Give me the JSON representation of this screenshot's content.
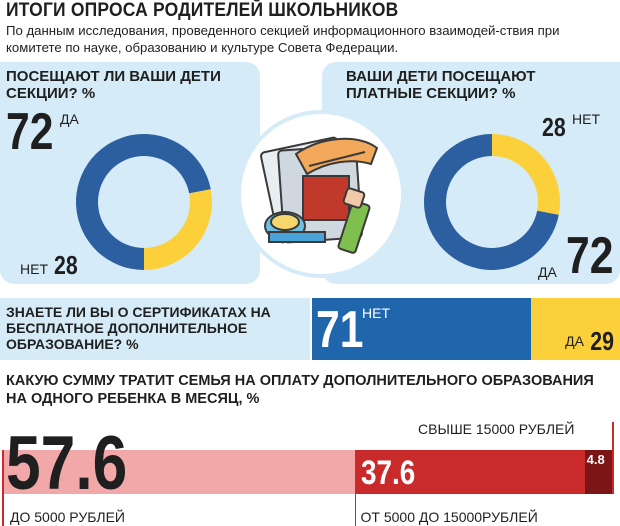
{
  "header": {
    "title": "ИТОГИ ОПРОСА РОДИТЕЛЕЙ ШКОЛЬНИКОВ",
    "subtitle": "По данным исследования, проведенного секцией информационного взаимодей-ствия при комитете по науке, образованию и культуре Совета Федерации."
  },
  "colors": {
    "panel_bg": "#d5ebf7",
    "blue": "#1f66ad",
    "yellow": "#fbd03a",
    "pink": "#f2a8a8",
    "red": "#c92a2a",
    "dark_red": "#7c1616"
  },
  "chart_data": [
    {
      "type": "pie",
      "style": "donut",
      "title": "ПОСЕЩАЮТ ЛИ ВАШИ ДЕТИ СЕКЦИИ? %",
      "categories": [
        "ДА",
        "НЕТ"
      ],
      "values": [
        72,
        28
      ],
      "colors": [
        "#2c5fa0",
        "#fbd03a"
      ],
      "value_labels": [
        "72",
        "28"
      ]
    },
    {
      "type": "pie",
      "style": "donut",
      "title": "ВАШИ ДЕТИ ПОСЕЩАЮТ ПЛАТНЫЕ СЕКЦИИ? %",
      "categories": [
        "ДА",
        "НЕТ"
      ],
      "values": [
        72,
        28
      ],
      "colors": [
        "#2c5fa0",
        "#fbd03a"
      ],
      "value_labels": [
        "72",
        "28"
      ]
    },
    {
      "type": "bar",
      "orientation": "horizontal",
      "stacked": true,
      "title": "ЗНАЕТЕ ЛИ ВЫ О СЕРТИФИКАТАХ НА БЕСПЛАТНОЕ ДОПОЛНИТЕЛЬНОЕ ОБРАЗОВАНИЕ? %",
      "categories": [
        "НЕТ",
        "ДА"
      ],
      "values": [
        71,
        29
      ],
      "colors": [
        "#1f66ad",
        "#fbd03a"
      ],
      "value_labels": [
        "71",
        "29"
      ]
    },
    {
      "type": "bar",
      "orientation": "horizontal",
      "stacked": true,
      "title": "КАКУЮ СУММУ ТРАТИТ СЕМЬЯ НА ОПЛАТУ ДОПОЛНИТЕЛЬНОГО ОБРАЗОВАНИЯ НА ОДНОГО РЕБЕНКА В МЕСЯЦ, %",
      "categories": [
        "ДО 5000 РУБЛЕЙ",
        "ОТ 5000 ДО 15000РУБЛЕЙ",
        "СВЫШЕ 15000 РУБЛЕЙ"
      ],
      "values": [
        57.6,
        37.6,
        4.8
      ],
      "colors": [
        "#f2a8a8",
        "#c92a2a",
        "#7c1616"
      ],
      "value_labels": [
        "57.6",
        "37.6",
        "4.8"
      ]
    }
  ]
}
